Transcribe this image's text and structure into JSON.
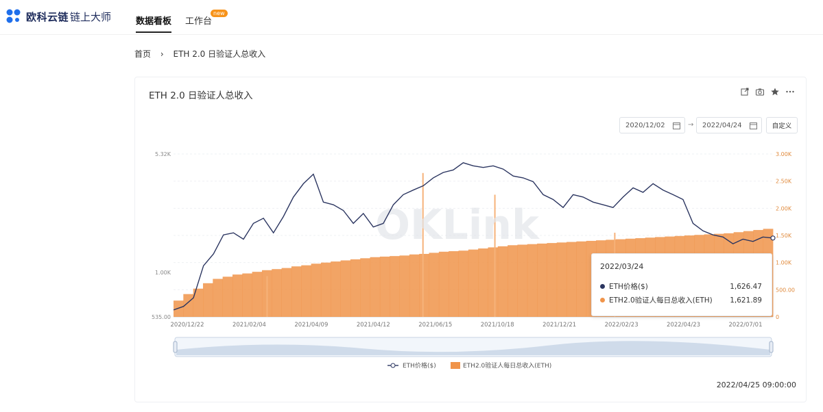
{
  "header": {
    "logo_name": "欧科云链",
    "logo_sub": "链上大师",
    "tabs": [
      {
        "label": "数据看板",
        "active": true
      },
      {
        "label": "工作台",
        "badge": "new"
      }
    ]
  },
  "breadcrumb": {
    "home": "首页",
    "separator": "›",
    "current": "ETH 2.0 日验证人总收入"
  },
  "card": {
    "title": "ETH 2.0 日验证人总收入",
    "date_start": "2020/12/02",
    "date_arrow": "→",
    "date_end": "2022/04/24",
    "custom_label": "自定义",
    "watermark": "OKLink",
    "timestamp": "2022/04/25 09:00:00"
  },
  "tooltip": {
    "date": "2022/03/24",
    "rows": [
      {
        "label": "ETH价格($)",
        "value": "1,626.47",
        "color": "#2b3560"
      },
      {
        "label": "ETH2.0验证人每日总收入(ETH)",
        "value": "1,621.89",
        "color": "#f0944a"
      }
    ]
  },
  "legend": {
    "series1": "ETH价格($)",
    "series2": "ETH2.0验证人每日总收入(ETH)"
  },
  "colors": {
    "price_line": "#2b3560",
    "income_area": "#f0944a",
    "accent": "#f7931a"
  },
  "chart_data": {
    "type": "line",
    "title": "ETH 2.0 日验证人总收入",
    "x_ticks": [
      "2020/12/22",
      "2021/02/04",
      "2021/04/09",
      "2021/04/12",
      "2021/06/15",
      "2021/10/18",
      "2021/12/21",
      "2022/02/23",
      "2022/04/23",
      "2022/07/01"
    ],
    "y_left_ticks": [
      "535.00",
      "1.00K",
      "5.32K"
    ],
    "y_right_ticks": [
      "0",
      "500.00",
      "1.00K",
      "1.50K",
      "2.00K",
      "2.50K",
      "3.00K"
    ],
    "series": [
      {
        "name": "ETH价格($)",
        "axis": "left",
        "values": [
          590,
          620,
          700,
          1100,
          1300,
          1700,
          1750,
          1600,
          2000,
          2150,
          1750,
          2200,
          2900,
          3500,
          4000,
          2700,
          2600,
          2400,
          2000,
          2300,
          1900,
          2000,
          2600,
          3000,
          3200,
          3400,
          3800,
          4100,
          4250,
          4700,
          4500,
          4400,
          4500,
          4300,
          3900,
          3800,
          3600,
          3000,
          2800,
          2500,
          3000,
          2900,
          2700,
          2600,
          2500,
          2900,
          3300,
          3100,
          3500,
          3200,
          3000,
          2800,
          2000,
          1800,
          1700,
          1650,
          1500,
          1600,
          1550,
          1650,
          1626.47
        ]
      },
      {
        "name": "ETH2.0验证人每日总收入(ETH)",
        "axis": "right",
        "values": [
          300,
          420,
          520,
          620,
          700,
          740,
          780,
          800,
          830,
          860,
          880,
          900,
          930,
          950,
          980,
          1000,
          1020,
          1040,
          1060,
          1080,
          1100,
          1110,
          1120,
          1130,
          1150,
          1160,
          1180,
          1200,
          1210,
          1220,
          1240,
          1260,
          1280,
          1300,
          1320,
          1330,
          1340,
          1350,
          1360,
          1370,
          1380,
          1390,
          1400,
          1410,
          1420,
          1430,
          1440,
          1450,
          1460,
          1470,
          1480,
          1490,
          1500,
          1510,
          1520,
          1530,
          1540,
          1560,
          1580,
          1600,
          1621.89
        ]
      }
    ]
  }
}
